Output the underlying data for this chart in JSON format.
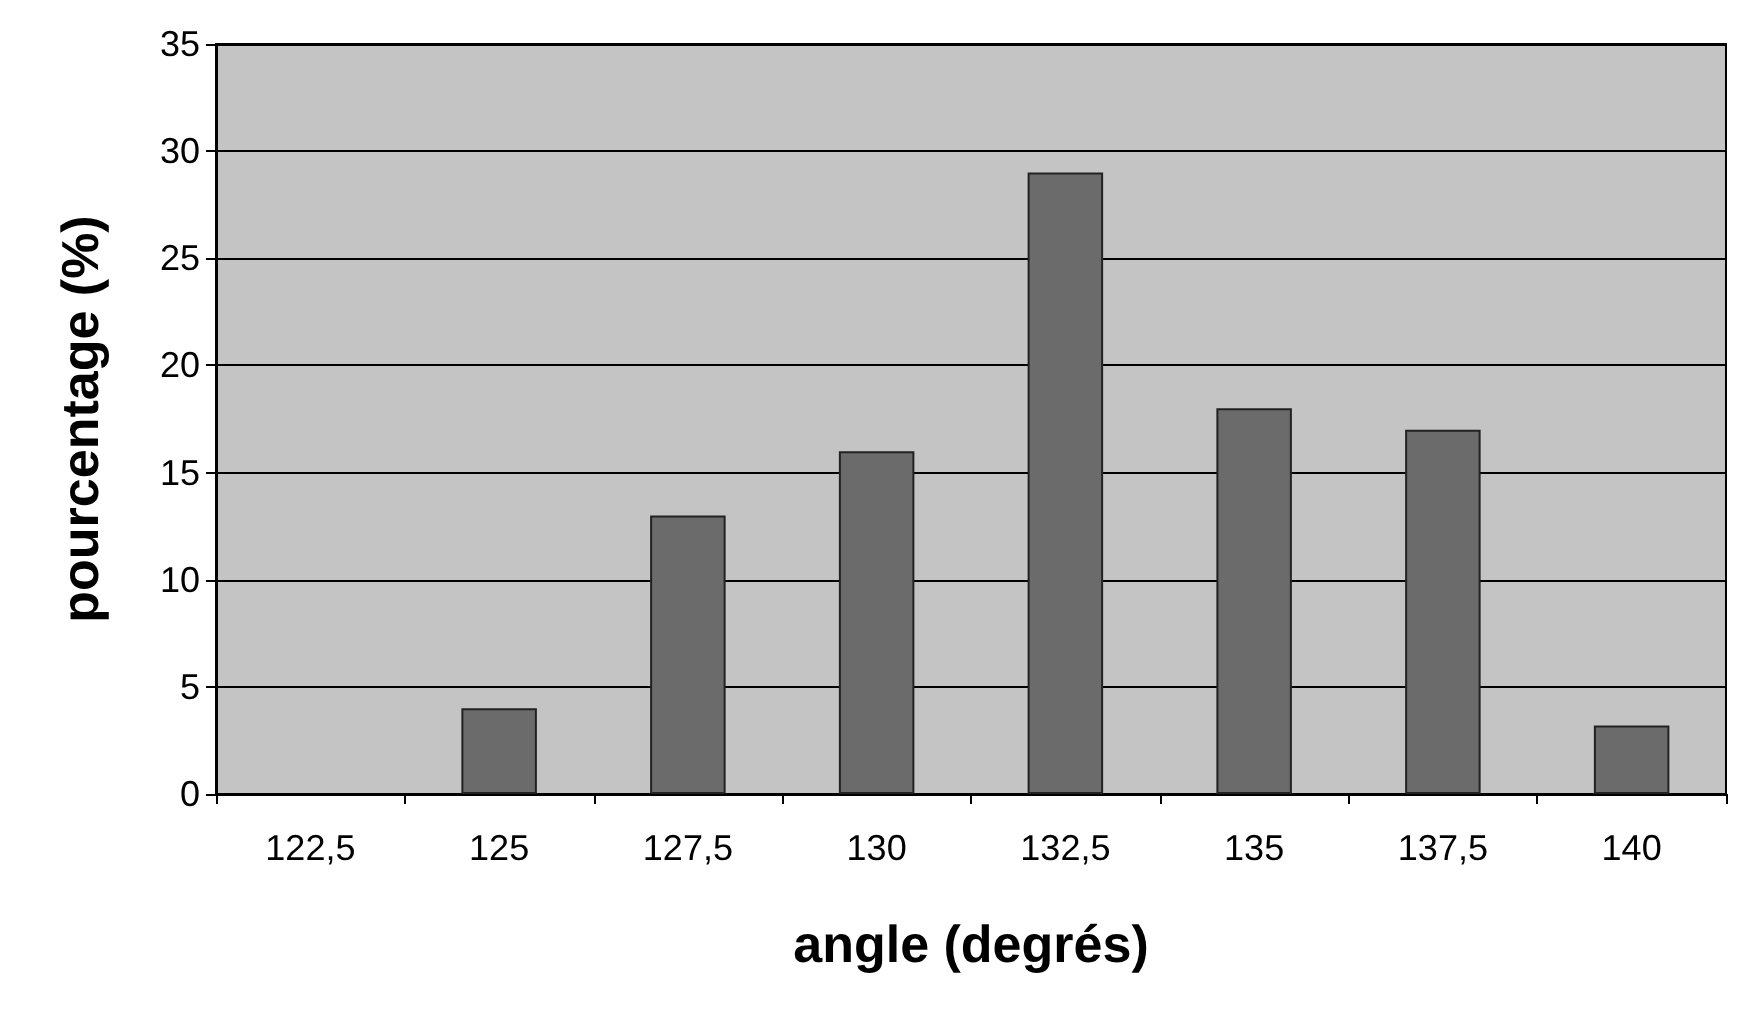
{
  "chart_data": {
    "type": "bar",
    "xlabel": "angle (degrés)",
    "ylabel": "pourcentage (%)",
    "categories": [
      "122,5",
      "125",
      "127,5",
      "130",
      "132,5",
      "135",
      "137,5",
      "140"
    ],
    "values": [
      0,
      4,
      13,
      16,
      29,
      18,
      17,
      3.2
    ],
    "color": "#6b6b6b",
    "ylim": [
      0,
      35
    ],
    "yticks": [
      0,
      5,
      10,
      15,
      20,
      25,
      30,
      35
    ],
    "grid": "y"
  }
}
